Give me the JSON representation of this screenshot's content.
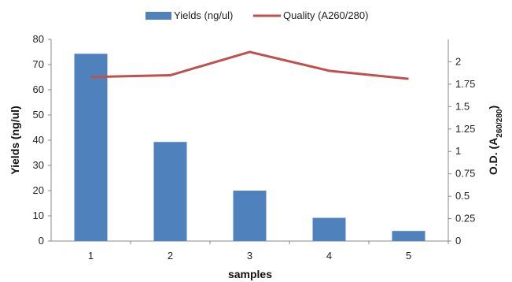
{
  "chart_data": {
    "type": "bar",
    "categories": [
      "1",
      "2",
      "3",
      "4",
      "5"
    ],
    "series": [
      {
        "name": "Yields (ng/ul)",
        "type": "bar",
        "axis": "left",
        "color": "#4f81bd",
        "values": [
          74.3,
          39.3,
          20.0,
          9.2,
          4.0
        ]
      },
      {
        "name": "Quality (A260/280)",
        "type": "line",
        "axis": "right",
        "color": "#c0504d",
        "values": [
          1.83,
          1.85,
          2.11,
          1.9,
          1.81
        ]
      }
    ],
    "xlabel": "samples",
    "ylabel": "Yields (ng/ul)",
    "y2label_main": "O.D. (A",
    "y2label_sub": "260/280",
    "y2label_close": ")",
    "ylim": [
      0,
      80
    ],
    "y2lim": [
      0,
      2.25
    ],
    "yticks": [
      "0",
      "10",
      "20",
      "30",
      "40",
      "50",
      "60",
      "70",
      "80"
    ],
    "y2ticks": [
      "0",
      "0.25",
      "0.5",
      "0.75",
      "1",
      "1.25",
      "1.5",
      "1.75",
      "2"
    ],
    "grid": false,
    "legend": "top-center"
  }
}
